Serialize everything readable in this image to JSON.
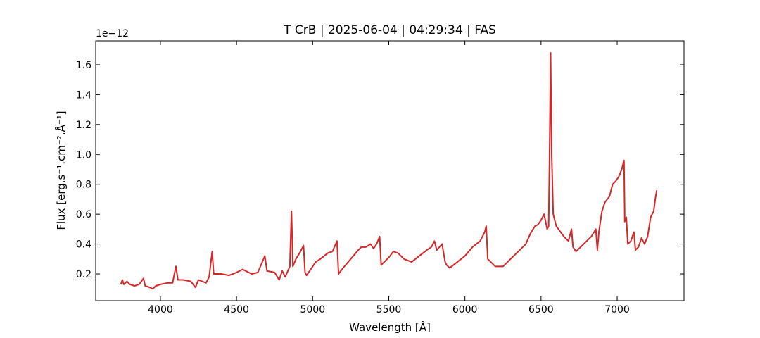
{
  "chart_data": {
    "type": "line",
    "title": "T CrB | 2025-06-04 | 04:29:34 | FAS",
    "xlabel": "Wavelength [Å]",
    "ylabel": "Flux [erg.s⁻¹.cm⁻².Å⁻¹]",
    "y_offset_label": "1e−12",
    "xlim": [
      3575,
      7439
    ],
    "ylim": [
      0.021,
      1.76
    ],
    "xticks": [
      4000,
      4500,
      5000,
      5500,
      6000,
      6500,
      7000
    ],
    "yticks": [
      0.2,
      0.4,
      0.6,
      0.8,
      {
        "value": 1.0,
        "label": "1.0"
      },
      1.2,
      1.4,
      1.6
    ],
    "x": [
      3740,
      3750,
      3760,
      3780,
      3800,
      3830,
      3860,
      3889,
      3900,
      3930,
      3950,
      3970,
      4000,
      4050,
      4080,
      4102,
      4115,
      4150,
      4200,
      4230,
      4250,
      4300,
      4320,
      4340,
      4350,
      4400,
      4450,
      4500,
      4540,
      4560,
      4600,
      4640,
      4686,
      4700,
      4750,
      4780,
      4800,
      4820,
      4850,
      4861,
      4870,
      4890,
      4920,
      4940,
      4950,
      4960,
      4980,
      5000,
      5020,
      5050,
      5100,
      5130,
      5160,
      5170,
      5200,
      5250,
      5300,
      5320,
      5350,
      5380,
      5400,
      5420,
      5440,
      5450,
      5470,
      5500,
      5530,
      5560,
      5600,
      5650,
      5700,
      5750,
      5780,
      5800,
      5815,
      5850,
      5870,
      5880,
      5900,
      5950,
      6000,
      6050,
      6100,
      6130,
      6140,
      6150,
      6200,
      6250,
      6300,
      6350,
      6400,
      6430,
      6460,
      6480,
      6500,
      6520,
      6540,
      6550,
      6556,
      6563,
      6570,
      6580,
      6600,
      6650,
      6680,
      6700,
      6710,
      6730,
      6760,
      6800,
      6830,
      6860,
      6870,
      6880,
      6900,
      6920,
      6950,
      6970,
      6990,
      7010,
      7030,
      7045,
      7050,
      7060,
      7070,
      7090,
      7110,
      7120,
      7140,
      7160,
      7180,
      7200,
      7220,
      7240,
      7250,
      7260
    ],
    "series": [
      {
        "name": "Flux",
        "color": "#d62728",
        "values": [
          0.13,
          0.16,
          0.13,
          0.15,
          0.13,
          0.12,
          0.13,
          0.17,
          0.12,
          0.11,
          0.1,
          0.12,
          0.13,
          0.14,
          0.14,
          0.25,
          0.16,
          0.16,
          0.15,
          0.11,
          0.16,
          0.14,
          0.18,
          0.35,
          0.2,
          0.2,
          0.19,
          0.21,
          0.23,
          0.22,
          0.2,
          0.21,
          0.32,
          0.22,
          0.21,
          0.16,
          0.22,
          0.18,
          0.25,
          0.62,
          0.25,
          0.3,
          0.35,
          0.39,
          0.21,
          0.19,
          0.22,
          0.25,
          0.28,
          0.3,
          0.34,
          0.35,
          0.42,
          0.2,
          0.24,
          0.3,
          0.36,
          0.38,
          0.38,
          0.4,
          0.37,
          0.4,
          0.45,
          0.26,
          0.28,
          0.31,
          0.35,
          0.34,
          0.3,
          0.28,
          0.32,
          0.36,
          0.38,
          0.42,
          0.36,
          0.4,
          0.28,
          0.26,
          0.24,
          0.28,
          0.32,
          0.38,
          0.42,
          0.48,
          0.52,
          0.3,
          0.25,
          0.25,
          0.3,
          0.35,
          0.4,
          0.47,
          0.52,
          0.53,
          0.56,
          0.6,
          0.5,
          0.52,
          1.0,
          1.68,
          1.0,
          0.6,
          0.52,
          0.45,
          0.42,
          0.5,
          0.38,
          0.35,
          0.38,
          0.42,
          0.45,
          0.5,
          0.36,
          0.48,
          0.62,
          0.68,
          0.72,
          0.8,
          0.82,
          0.85,
          0.9,
          0.96,
          0.55,
          0.58,
          0.4,
          0.42,
          0.48,
          0.36,
          0.38,
          0.44,
          0.4,
          0.45,
          0.58,
          0.62,
          0.7,
          0.76
        ]
      }
    ]
  }
}
